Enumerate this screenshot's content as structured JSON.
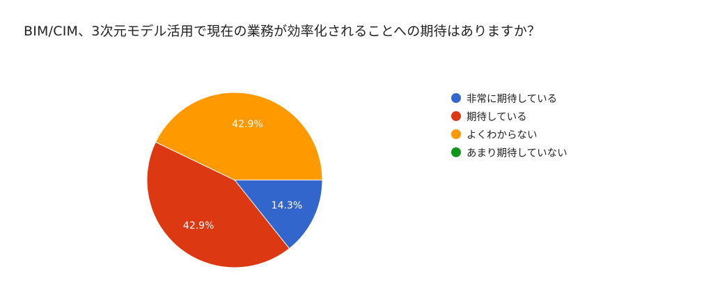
{
  "title": "BIM/CIM、3次元モデル活用で現在の業務が効率化されることへの期待はありますか？",
  "chart_data": {
    "type": "pie",
    "categories": [
      "非常に期待している",
      "期待している",
      "よくわからない",
      "あまり期待していない"
    ],
    "values": [
      14.3,
      42.9,
      42.9,
      0
    ],
    "value_labels": [
      "14.3%",
      "42.9%",
      "42.9%",
      ""
    ],
    "colors": [
      "#3366cc",
      "#dc3912",
      "#ff9900",
      "#109618"
    ],
    "legend_position": "right",
    "start_angle": "3 o'clock",
    "direction": "clockwise"
  }
}
